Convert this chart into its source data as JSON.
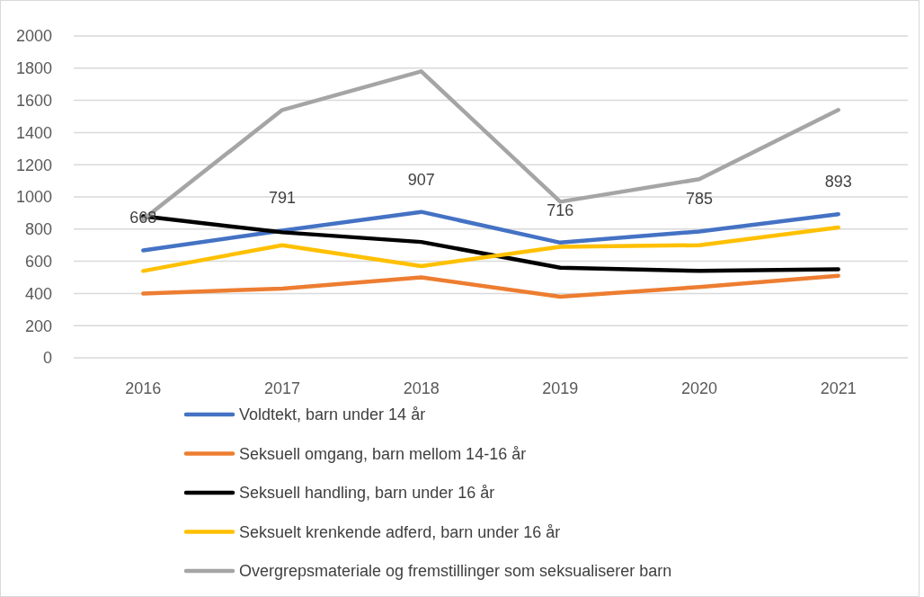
{
  "chart_data": {
    "type": "line",
    "categories": [
      "2016",
      "2017",
      "2018",
      "2019",
      "2020",
      "2021"
    ],
    "series": [
      {
        "name": "Voldtekt, barn under 14 år",
        "color": "#4472c4",
        "values": [
          668,
          791,
          907,
          716,
          785,
          893
        ],
        "value_labels": [
          "668",
          "791",
          "907",
          "716",
          "785",
          "893"
        ]
      },
      {
        "name": "Seksuell omgang, barn mellom 14-16 år",
        "color": "#ed7d31",
        "values": [
          400,
          430,
          500,
          380,
          440,
          510
        ]
      },
      {
        "name": "Seksuell handling, barn under 16 år",
        "color": "#000000",
        "values": [
          880,
          780,
          720,
          560,
          540,
          550
        ]
      },
      {
        "name": "Seksuelt krenkende adferd, barn under 16 år",
        "color": "#ffc000",
        "values": [
          540,
          700,
          570,
          690,
          700,
          810
        ]
      },
      {
        "name": "Overgrepsmateriale og fremstillinger som seksualiserer barn",
        "color": "#a5a5a5",
        "values": [
          860,
          1540,
          1780,
          970,
          1110,
          1540
        ]
      }
    ],
    "ylim": [
      0,
      2000
    ],
    "yticks": [
      0,
      200,
      400,
      600,
      800,
      1000,
      1200,
      1400,
      1600,
      1800,
      2000
    ],
    "grid": "y",
    "legend": "bottom",
    "marker": "none",
    "line_style": "solid"
  }
}
